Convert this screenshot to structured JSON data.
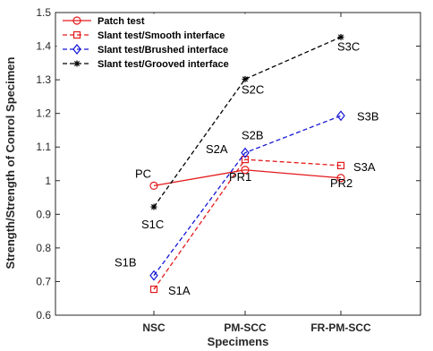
{
  "chart_data": {
    "type": "line",
    "xlabel": "Specimens",
    "ylabel": "Strength/Strength of Conrol Specimen",
    "categories": [
      "NSC",
      "PM-SCC",
      "FR-PM-SCC"
    ],
    "ylim": [
      0.6,
      1.5
    ],
    "yticks": [
      "0.6",
      "0.7",
      "0.8",
      "0.9",
      "1",
      "1.1",
      "1.2",
      "1.3",
      "1.4",
      "1.5"
    ],
    "grid": false,
    "legend_position": "top-left",
    "series": [
      {
        "name": "Patch test",
        "color": "#e41a1c",
        "line_style": "solid",
        "marker": "circle",
        "values": [
          0.985,
          1.032,
          1.008
        ],
        "point_labels": [
          "PC",
          "PR1",
          "PR2"
        ]
      },
      {
        "name": "Slant test/Smooth interface",
        "color": "#e41a1c",
        "line_style": "dashed",
        "marker": "square",
        "values": [
          0.677,
          1.063,
          1.045
        ],
        "point_labels": [
          "S1A",
          "S2A",
          "S3A"
        ]
      },
      {
        "name": "Slant test/Brushed interface",
        "color": "#1515d6",
        "line_style": "dashed",
        "marker": "diamond",
        "values": [
          0.718,
          1.083,
          1.193
        ],
        "point_labels": [
          "S1B",
          "S2B",
          "S3B"
        ]
      },
      {
        "name": "Slant test/Grooved interface",
        "color": "#000000",
        "line_style": "dashed",
        "marker": "asterisk",
        "values": [
          0.922,
          1.302,
          1.427
        ],
        "point_labels": [
          "S1C",
          "S2C",
          "S3C"
        ]
      }
    ]
  }
}
